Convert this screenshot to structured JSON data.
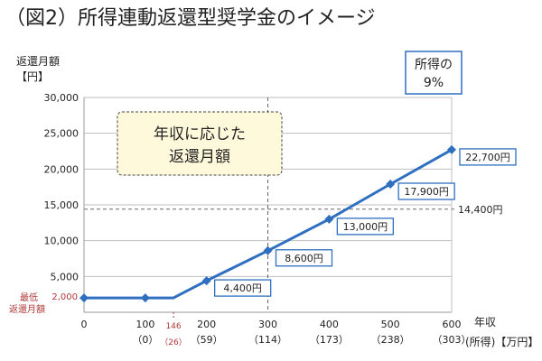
{
  "chart_data": {
    "type": "line",
    "title": "（図2）所得連動返還型奨学金のイメージ",
    "ylabel_lines": [
      "返還月額",
      "【円】"
    ],
    "xlabel_lines": [
      "年収",
      "(所得)【万円】"
    ],
    "ylim": [
      0,
      30000
    ],
    "xlim": [
      0,
      600
    ],
    "y_ticks": [
      {
        "value": 0,
        "label": ""
      },
      {
        "value": 5000,
        "label": "5,000"
      },
      {
        "value": 10000,
        "label": "10,000"
      },
      {
        "value": 15000,
        "label": "15,000"
      },
      {
        "value": 20000,
        "label": "20,000"
      },
      {
        "value": 25000,
        "label": "25,000"
      },
      {
        "value": 30000,
        "label": "30,000"
      }
    ],
    "x_ticks": [
      {
        "value": 0,
        "label": "0",
        "sub": ""
      },
      {
        "value": 100,
        "label": "100",
        "sub": "（0）"
      },
      {
        "value": 200,
        "label": "200",
        "sub": "（59）"
      },
      {
        "value": 300,
        "label": "300",
        "sub": "（114）"
      },
      {
        "value": 400,
        "label": "400",
        "sub": "（173）"
      },
      {
        "value": 500,
        "label": "500",
        "sub": "（238）"
      },
      {
        "value": 600,
        "label": "600",
        "sub": "（303）"
      }
    ],
    "special_tick": {
      "value": 146,
      "label": "146",
      "sub": "（26）",
      "color": "#b03a3a"
    },
    "series": [
      {
        "color": "#2e6fc0",
        "points": [
          {
            "x": 0,
            "y": 2000,
            "label": ""
          },
          {
            "x": 100,
            "y": 2000,
            "label": ""
          },
          {
            "x": 146,
            "y": 2000,
            "label": ""
          },
          {
            "x": 200,
            "y": 4400,
            "label": "4,400円"
          },
          {
            "x": 300,
            "y": 8600,
            "label": "8,600円"
          },
          {
            "x": 400,
            "y": 13000,
            "label": "13,000円"
          },
          {
            "x": 500,
            "y": 17900,
            "label": "17,900円"
          },
          {
            "x": 600,
            "y": 22700,
            "label": "22,700円"
          }
        ]
      }
    ],
    "ref_line_y": {
      "value": 14400,
      "label": "14,400円"
    },
    "ref_line_x": {
      "value": 300
    },
    "min_label_lines": [
      "最低",
      "返還月額"
    ],
    "min_value_label": "2,000",
    "annotation_box_lines": [
      "年収に応じた",
      "返還月額"
    ],
    "rate_box_lines": [
      "所得の",
      "9%"
    ],
    "colors": {
      "line": "#2e6fc0",
      "grid": "#bfbfbf",
      "accent": "#b03a3a",
      "annotation_bg": "#fff9dc"
    }
  }
}
